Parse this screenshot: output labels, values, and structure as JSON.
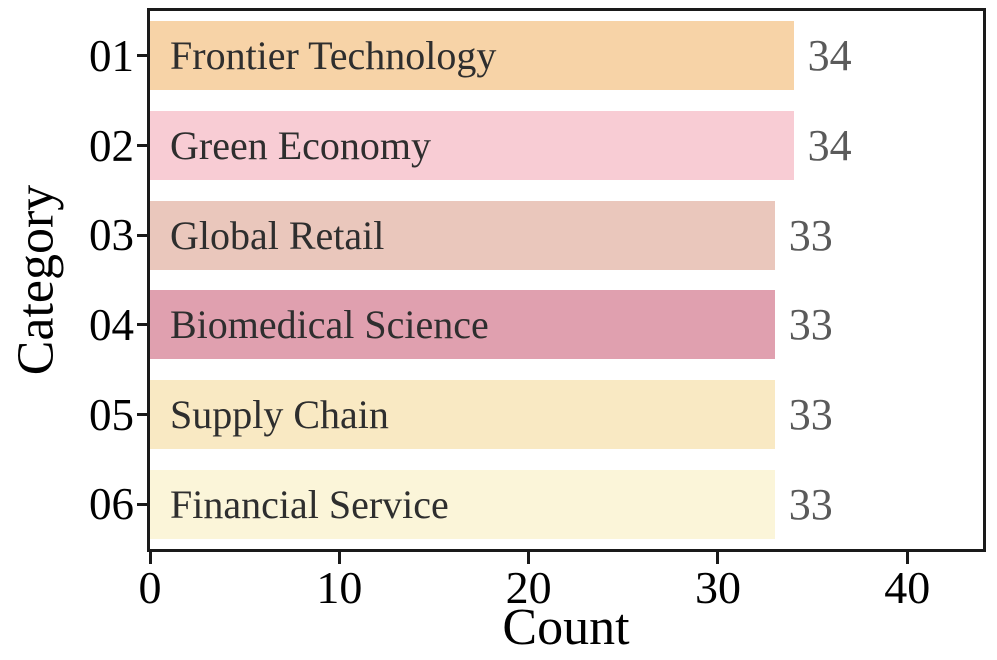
{
  "figure": {
    "background": "#ffffff",
    "frame_color": "#1a1a1a"
  },
  "chart_data": {
    "type": "bar",
    "orientation": "horizontal",
    "xlabel": "Count",
    "ylabel": "Category",
    "xlim": [
      0,
      44
    ],
    "x_ticks": [
      "0",
      "10",
      "20",
      "30",
      "40"
    ],
    "x_tick_values": [
      0,
      10,
      20,
      30,
      40
    ],
    "grid": false,
    "legend": "none",
    "bars": [
      {
        "index": "01",
        "label": "Frontier Technology",
        "value": 34,
        "color": "#f7d3a7"
      },
      {
        "index": "02",
        "label": "Green Economy",
        "value": 34,
        "color": "#f8ccd4"
      },
      {
        "index": "03",
        "label": "Global Retail",
        "value": 33,
        "color": "#eac7bc"
      },
      {
        "index": "04",
        "label": "Biomedical Science",
        "value": 33,
        "color": "#e0a0af"
      },
      {
        "index": "05",
        "label": "Supply Chain",
        "value": 33,
        "color": "#f9e9c3"
      },
      {
        "index": "06",
        "label": "Financial Service",
        "value": 33,
        "color": "#fbf5d9"
      }
    ],
    "bar_label_color": "#2e2e2e",
    "value_label_color": "#5a5a5a",
    "axis_text_color": "#000000"
  }
}
